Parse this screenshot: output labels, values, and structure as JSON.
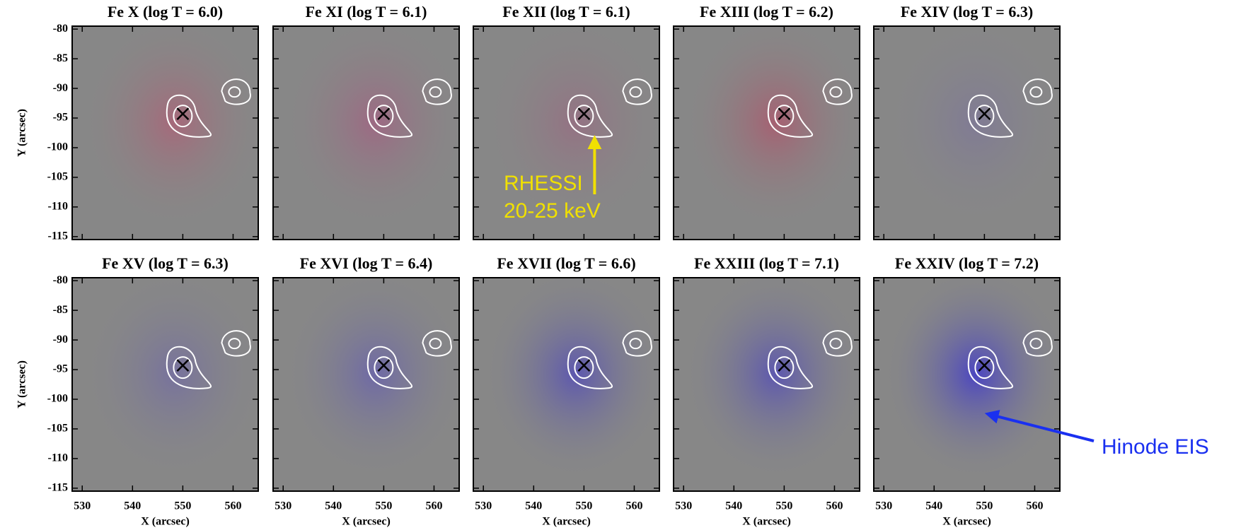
{
  "chart_data": [
    {
      "type": "image",
      "title": "Fe X (log T = 6.0)",
      "ylabel": "Y (arcsec)",
      "xlim": [
        528,
        565
      ],
      "ylim": [
        -115.5,
        -79.5
      ],
      "xticks": [
        530,
        540,
        550,
        560
      ],
      "yticks": [
        -80,
        -85,
        -90,
        -95,
        -100,
        -105,
        -110,
        -115
      ],
      "marker": {
        "x": 550,
        "y": -94.3
      },
      "color": "#c05070"
    },
    {
      "type": "image",
      "title": "Fe XI (log T = 6.1)",
      "xlim": [
        528,
        565
      ],
      "ylim": [
        -115.5,
        -79.5
      ],
      "xticks": [
        530,
        540,
        550,
        560
      ],
      "yticks": [
        -80,
        -85,
        -90,
        -95,
        -100,
        -105,
        -110,
        -115
      ],
      "marker": {
        "x": 550,
        "y": -94.3
      },
      "color": "#b05080"
    },
    {
      "type": "image",
      "title": "Fe XII (log T = 6.1)",
      "xlim": [
        528,
        565
      ],
      "ylim": [
        -115.5,
        -79.5
      ],
      "xticks": [
        530,
        540,
        550,
        560
      ],
      "yticks": [
        -80,
        -85,
        -90,
        -95,
        -100,
        -105,
        -110,
        -115
      ],
      "marker": {
        "x": 550,
        "y": -94.3
      },
      "color": "#a06080",
      "annotation": [
        "RHESSI",
        "20-25 keV"
      ]
    },
    {
      "type": "image",
      "title": "Fe XIII (log T = 6.2)",
      "xlim": [
        528,
        565
      ],
      "ylim": [
        -115.5,
        -79.5
      ],
      "xticks": [
        530,
        540,
        550,
        560
      ],
      "yticks": [
        -80,
        -85,
        -90,
        -95,
        -100,
        -105,
        -110,
        -115
      ],
      "marker": {
        "x": 550,
        "y": -94.3
      },
      "color": "#c04060"
    },
    {
      "type": "image",
      "title": "Fe XIV (log T = 6.3)",
      "xlim": [
        528,
        565
      ],
      "ylim": [
        -115.5,
        -79.5
      ],
      "xticks": [
        530,
        540,
        550,
        560
      ],
      "yticks": [
        -80,
        -85,
        -90,
        -95,
        -100,
        -105,
        -110,
        -115
      ],
      "marker": {
        "x": 550,
        "y": -94.3
      },
      "color": "#7a70a0"
    },
    {
      "type": "image",
      "title": "Fe XV (log T = 6.3)",
      "ylabel": "Y (arcsec)",
      "xlabel": "X (arcsec)",
      "xlim": [
        528,
        565
      ],
      "ylim": [
        -115.5,
        -79.5
      ],
      "xticks": [
        530,
        540,
        550,
        560
      ],
      "yticks": [
        -80,
        -85,
        -90,
        -95,
        -100,
        -105,
        -110,
        -115
      ],
      "marker": {
        "x": 550,
        "y": -94.3
      },
      "color": "#6a60b0"
    },
    {
      "type": "image",
      "title": "Fe XVI (log T = 6.4)",
      "xlabel": "X (arcsec)",
      "xlim": [
        528,
        565
      ],
      "ylim": [
        -115.5,
        -79.5
      ],
      "xticks": [
        530,
        540,
        550,
        560
      ],
      "yticks": [
        -80,
        -85,
        -90,
        -95,
        -100,
        -105,
        -110,
        -115
      ],
      "marker": {
        "x": 550,
        "y": -94.3
      },
      "color": "#5a50c0"
    },
    {
      "type": "image",
      "title": "Fe XVII (log T = 6.6)",
      "xlabel": "X (arcsec)",
      "xlim": [
        528,
        565
      ],
      "ylim": [
        -115.5,
        -79.5
      ],
      "xticks": [
        530,
        540,
        550,
        560
      ],
      "yticks": [
        -80,
        -85,
        -90,
        -95,
        -100,
        -105,
        -110,
        -115
      ],
      "marker": {
        "x": 550,
        "y": -94.3
      },
      "color": "#3a30d0"
    },
    {
      "type": "image",
      "title": "Fe XXIII (log T = 7.1)",
      "xlabel": "X (arcsec)",
      "xlim": [
        528,
        565
      ],
      "ylim": [
        -115.5,
        -79.5
      ],
      "xticks": [
        530,
        540,
        550,
        560
      ],
      "yticks": [
        -80,
        -85,
        -90,
        -95,
        -100,
        -105,
        -110,
        -115
      ],
      "marker": {
        "x": 550,
        "y": -94.3
      },
      "color": "#3a30d0"
    },
    {
      "type": "image",
      "title": "Fe XXIV (log T = 7.2)",
      "xlabel": "X (arcsec)",
      "xlim": [
        528,
        565
      ],
      "ylim": [
        -115.5,
        -79.5
      ],
      "xticks": [
        530,
        540,
        550,
        560
      ],
      "yticks": [
        -80,
        -85,
        -90,
        -95,
        -100,
        -105,
        -110,
        -115
      ],
      "marker": {
        "x": 550,
        "y": -94.3
      },
      "color": "#1a10f0",
      "annotation": [
        "Hinode EIS"
      ]
    }
  ]
}
